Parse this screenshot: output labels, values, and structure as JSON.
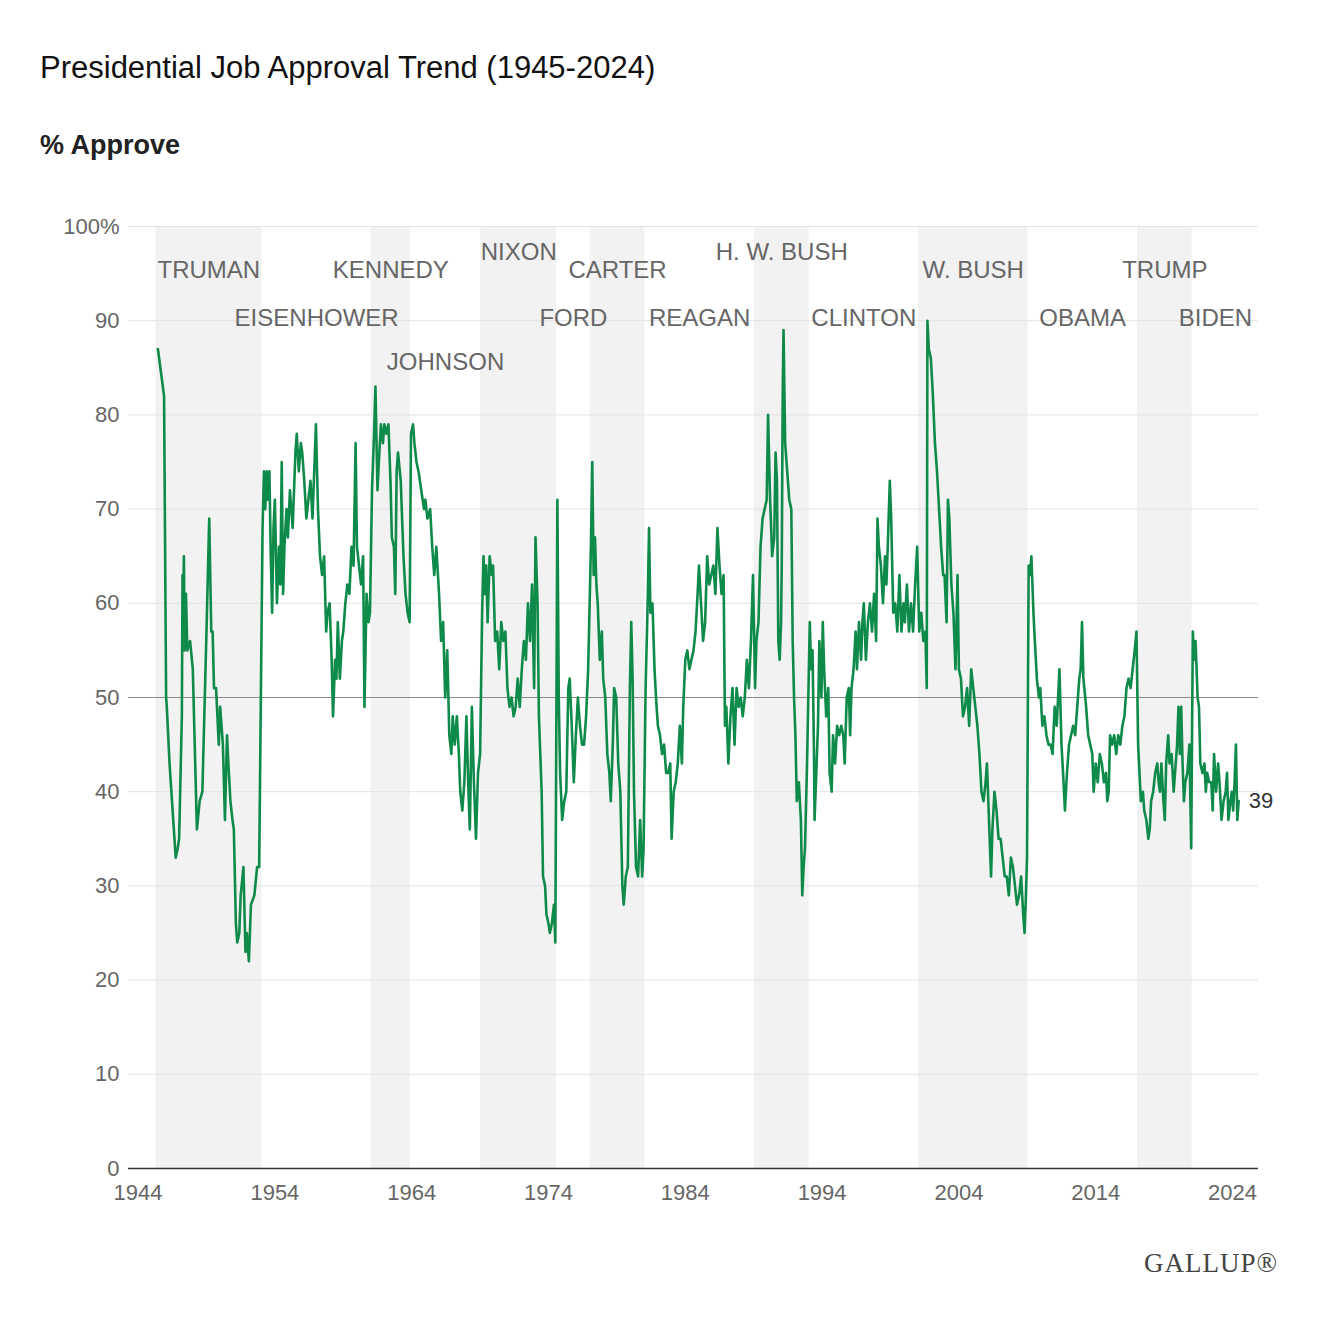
{
  "chart_data": {
    "type": "line",
    "title": "Presidential Job Approval Trend (1945-2024)",
    "subtitle": "% Approve",
    "caption": "GALLUP®",
    "color": "#0e8a4a",
    "grid": true,
    "xlim": [
      1943.3,
      2025.9
    ],
    "xticks": [
      1944,
      1954,
      1964,
      1974,
      1984,
      1994,
      2004,
      2014,
      2024
    ],
    "ylim": [
      0,
      100
    ],
    "yticks": [
      0,
      10,
      20,
      30,
      40,
      50,
      60,
      70,
      80,
      90,
      {
        "value": 100,
        "label": "100%"
      }
    ],
    "reference_line": 50,
    "presidents": [
      {
        "name": "TRUMAN",
        "start": 1945.3,
        "end": 1953.05
      },
      {
        "name": "EISENHOWER",
        "start": 1953.05,
        "end": 1961.05
      },
      {
        "name": "KENNEDY",
        "start": 1961.05,
        "end": 1963.9
      },
      {
        "name": "JOHNSON",
        "start": 1963.9,
        "end": 1969.05
      },
      {
        "name": "NIXON",
        "start": 1969.05,
        "end": 1974.6
      },
      {
        "name": "FORD",
        "start": 1974.6,
        "end": 1977.05
      },
      {
        "name": "CARTER",
        "start": 1977.05,
        "end": 1981.05
      },
      {
        "name": "REAGAN",
        "start": 1981.05,
        "end": 1989.05
      },
      {
        "name": "H. W. BUSH",
        "start": 1989.05,
        "end": 1993.05
      },
      {
        "name": "CLINTON",
        "start": 1993.05,
        "end": 2001.05
      },
      {
        "name": "W. BUSH",
        "start": 2001.05,
        "end": 2009.05
      },
      {
        "name": "OBAMA",
        "start": 2009.05,
        "end": 2017.05
      },
      {
        "name": "TRUMP",
        "start": 2017.05,
        "end": 2021.05
      },
      {
        "name": "BIDEN",
        "start": 2021.05,
        "end": 2024.45
      }
    ],
    "x": [
      1945.45,
      1945.9,
      1946.05,
      1946.1,
      1946.3,
      1946.75,
      1946.9,
      1947.0,
      1947.2,
      1947.25,
      1947.3,
      1947.35,
      1947.4,
      1947.5,
      1947.6,
      1947.8,
      1948.0,
      1948.3,
      1948.5,
      1948.7,
      1949.0,
      1949.2,
      1949.35,
      1949.45,
      1949.55,
      1949.7,
      1949.9,
      1950.0,
      1950.2,
      1950.35,
      1950.5,
      1950.6,
      1950.75,
      1950.9,
      1951.0,
      1951.15,
      1951.25,
      1951.4,
      1951.5,
      1951.7,
      1951.85,
      1951.95,
      1952.1,
      1952.25,
      1952.5,
      1952.7,
      1952.85,
      1953.1,
      1953.2,
      1953.3,
      1953.4,
      1953.5,
      1953.6,
      1953.7,
      1953.8,
      1953.9,
      1954.0,
      1954.15,
      1954.3,
      1954.4,
      1954.5,
      1954.6,
      1954.7,
      1954.85,
      1954.95,
      1955.1,
      1955.3,
      1955.5,
      1955.6,
      1955.75,
      1955.9,
      1956.0,
      1956.15,
      1956.3,
      1956.45,
      1956.6,
      1956.75,
      1956.9,
      1957.0,
      1957.15,
      1957.3,
      1957.45,
      1957.6,
      1957.75,
      1957.85,
      1958.0,
      1958.15,
      1958.25,
      1958.4,
      1958.5,
      1958.6,
      1958.75,
      1958.9,
      1959.0,
      1959.15,
      1959.3,
      1959.45,
      1959.6,
      1959.75,
      1959.9,
      1960.0,
      1960.15,
      1960.3,
      1960.45,
      1960.55,
      1960.7,
      1960.85,
      1960.95,
      1961.1,
      1961.25,
      1961.35,
      1961.5,
      1961.6,
      1961.75,
      1961.9,
      1962.0,
      1962.15,
      1962.3,
      1962.45,
      1962.55,
      1962.7,
      1962.8,
      1962.9,
      1963.0,
      1963.2,
      1963.4,
      1963.55,
      1963.7,
      1963.85,
      1963.95,
      1964.1,
      1964.2,
      1964.35,
      1964.5,
      1964.7,
      1964.9,
      1965.0,
      1965.15,
      1965.35,
      1965.5,
      1965.65,
      1965.8,
      1966.0,
      1966.15,
      1966.3,
      1966.45,
      1966.6,
      1966.75,
      1966.9,
      1967.0,
      1967.15,
      1967.3,
      1967.45,
      1967.55,
      1967.7,
      1967.85,
      1968.0,
      1968.15,
      1968.25,
      1968.4,
      1968.55,
      1968.7,
      1968.85,
      1969.0,
      1969.15,
      1969.25,
      1969.35,
      1969.45,
      1969.55,
      1969.7,
      1969.85,
      1969.95,
      1970.1,
      1970.25,
      1970.4,
      1970.55,
      1970.7,
      1970.85,
      1971.0,
      1971.15,
      1971.3,
      1971.45,
      1971.6,
      1971.75,
      1971.9,
      1972.05,
      1972.2,
      1972.35,
      1972.5,
      1972.65,
      1972.8,
      1972.95,
      1973.05,
      1973.2,
      1973.3,
      1973.4,
      1973.5,
      1973.6,
      1973.75,
      1973.85,
      1974.0,
      1974.1,
      1974.25,
      1974.4,
      1974.5,
      1974.65,
      1974.75,
      1974.85,
      1975.0,
      1975.15,
      1975.3,
      1975.45,
      1975.55,
      1975.7,
      1975.85,
      1976.0,
      1976.15,
      1976.3,
      1976.45,
      1976.6,
      1976.75,
      1976.9,
      1977.1,
      1977.2,
      1977.3,
      1977.4,
      1977.5,
      1977.6,
      1977.75,
      1977.9,
      1978.0,
      1978.15,
      1978.3,
      1978.45,
      1978.55,
      1978.7,
      1978.8,
      1978.95,
      1979.1,
      1979.25,
      1979.4,
      1979.5,
      1979.65,
      1979.8,
      1979.95,
      1980.05,
      1980.15,
      1980.25,
      1980.4,
      1980.55,
      1980.7,
      1980.85,
      1980.95,
      1981.1,
      1981.25,
      1981.35,
      1981.45,
      1981.6,
      1981.75,
      1981.9,
      1982.0,
      1982.15,
      1982.3,
      1982.45,
      1982.6,
      1982.75,
      1982.9,
      1983.0,
      1983.15,
      1983.3,
      1983.45,
      1983.6,
      1983.75,
      1983.85,
      1984.0,
      1984.15,
      1984.3,
      1984.45,
      1984.6,
      1984.75,
      1984.9,
      1985.0,
      1985.15,
      1985.3,
      1985.45,
      1985.6,
      1985.75,
      1985.9,
      1986.05,
      1986.2,
      1986.35,
      1986.5,
      1986.65,
      1986.8,
      1986.9,
      1987.0,
      1987.15,
      1987.3,
      1987.45,
      1987.6,
      1987.75,
      1987.9,
      1988.05,
      1988.2,
      1988.35,
      1988.5,
      1988.65,
      1988.8,
      1988.95,
      1989.1,
      1989.2,
      1989.35,
      1989.5,
      1989.65,
      1989.8,
      1989.95,
      1990.05,
      1990.2,
      1990.35,
      1990.5,
      1990.6,
      1990.7,
      1990.8,
      1990.9,
      1991.0,
      1991.05,
      1991.12,
      1991.18,
      1991.3,
      1991.45,
      1991.6,
      1991.75,
      1991.85,
      1991.95,
      1992.05,
      1992.15,
      1992.3,
      1992.45,
      1992.55,
      1992.65,
      1992.75,
      1992.9,
      1993.1,
      1993.2,
      1993.3,
      1993.4,
      1993.45,
      1993.55,
      1993.7,
      1993.8,
      1993.95,
      1994.05,
      1994.15,
      1994.3,
      1994.45,
      1994.55,
      1994.7,
      1994.8,
      1994.95,
      1995.1,
      1995.25,
      1995.4,
      1995.55,
      1995.65,
      1995.8,
      1995.95,
      1996.05,
      1996.15,
      1996.3,
      1996.45,
      1996.55,
      1996.7,
      1996.85,
      1996.95,
      1997.05,
      1997.2,
      1997.35,
      1997.5,
      1997.65,
      1997.8,
      1997.95,
      1998.05,
      1998.15,
      1998.3,
      1998.45,
      1998.6,
      1998.7,
      1998.8,
      1998.95,
      1999.05,
      1999.2,
      1999.35,
      1999.5,
      1999.65,
      1999.8,
      1999.95,
      2000.05,
      2000.2,
      2000.35,
      2000.5,
      2000.65,
      2000.8,
      2000.95,
      2001.1,
      2001.25,
      2001.4,
      2001.55,
      2001.65,
      2001.7,
      2001.8,
      2001.95,
      2002.1,
      2002.25,
      2002.4,
      2002.55,
      2002.7,
      2002.85,
      2002.95,
      2003.1,
      2003.2,
      2003.3,
      2003.45,
      2003.6,
      2003.75,
      2003.9,
      2004.0,
      2004.15,
      2004.3,
      2004.45,
      2004.6,
      2004.75,
      2004.9,
      2005.05,
      2005.2,
      2005.35,
      2005.5,
      2005.65,
      2005.8,
      2005.95,
      2006.05,
      2006.2,
      2006.35,
      2006.45,
      2006.6,
      2006.75,
      2006.9,
      2007.05,
      2007.2,
      2007.35,
      2007.5,
      2007.65,
      2007.8,
      2007.95,
      2008.1,
      2008.25,
      2008.4,
      2008.55,
      2008.7,
      2008.8,
      2008.9,
      2008.98,
      2009.1,
      2009.2,
      2009.3,
      2009.45,
      2009.55,
      2009.7,
      2009.85,
      2009.95,
      2010.1,
      2010.25,
      2010.4,
      2010.55,
      2010.7,
      2010.85,
      2011.0,
      2011.15,
      2011.35,
      2011.5,
      2011.65,
      2011.75,
      2011.9,
      2012.05,
      2012.2,
      2012.35,
      2012.5,
      2012.65,
      2012.8,
      2012.9,
      2013.0,
      2013.1,
      2013.3,
      2013.45,
      2013.6,
      2013.75,
      2013.85,
      2014.0,
      2014.15,
      2014.3,
      2014.45,
      2014.6,
      2014.75,
      2014.85,
      2014.95,
      2015.05,
      2015.2,
      2015.35,
      2015.5,
      2015.65,
      2015.8,
      2015.95,
      2016.1,
      2016.25,
      2016.4,
      2016.55,
      2016.7,
      2016.85,
      2016.98,
      2017.1,
      2017.2,
      2017.3,
      2017.45,
      2017.55,
      2017.7,
      2017.85,
      2017.95,
      2018.05,
      2018.2,
      2018.35,
      2018.5,
      2018.6,
      2018.7,
      2018.8,
      2018.95,
      2019.05,
      2019.15,
      2019.3,
      2019.4,
      2019.55,
      2019.7,
      2019.85,
      2019.95,
      2020.05,
      2020.15,
      2020.25,
      2020.35,
      2020.45,
      2020.55,
      2020.7,
      2020.85,
      2020.98,
      2021.1,
      2021.2,
      2021.3,
      2021.45,
      2021.55,
      2021.65,
      2021.8,
      2021.95,
      2022.05,
      2022.15,
      2022.3,
      2022.45,
      2022.55,
      2022.65,
      2022.8,
      2022.95,
      2023.05,
      2023.2,
      2023.35,
      2023.5,
      2023.6,
      2023.7,
      2023.85,
      2023.95,
      2024.05,
      2024.15,
      2024.25,
      2024.35,
      2024.45
    ],
    "values": [
      87,
      82,
      50,
      49,
      43,
      33,
      34,
      35,
      48,
      63,
      60,
      65,
      55,
      61,
      55,
      56,
      53,
      36,
      39,
      40,
      57,
      69,
      57,
      57,
      51,
      51,
      45,
      49,
      45,
      37,
      46,
      43,
      39,
      37,
      36,
      26,
      24,
      25,
      29,
      32,
      23,
      25,
      22,
      28,
      29,
      32,
      32,
      68,
      74,
      70,
      74,
      71,
      74,
      65,
      59,
      68,
      71,
      60,
      66,
      62,
      75,
      61,
      66,
      70,
      67,
      72,
      68,
      76,
      78,
      74,
      77,
      76,
      73,
      69,
      71,
      73,
      69,
      75,
      79,
      70,
      65,
      63,
      65,
      57,
      59,
      60,
      54,
      48,
      54,
      52,
      58,
      52,
      56,
      57,
      60,
      62,
      61,
      66,
      64,
      77,
      66,
      64,
      62,
      65,
      49,
      61,
      58,
      59,
      72,
      78,
      83,
      72,
      75,
      79,
      77,
      79,
      78,
      79,
      73,
      67,
      66,
      61,
      74,
      76,
      73,
      65,
      61,
      59,
      58,
      78,
      79,
      77,
      75,
      74,
      72,
      70,
      71,
      69,
      70,
      66,
      63,
      66,
      61,
      56,
      58,
      50,
      55,
      46,
      44,
      48,
      45,
      48,
      44,
      40,
      38,
      41,
      48,
      40,
      36,
      49,
      41,
      35,
      42,
      44,
      59,
      65,
      61,
      64,
      58,
      65,
      63,
      64,
      56,
      57,
      53,
      58,
      56,
      57,
      51,
      49,
      50,
      48,
      49,
      52,
      49,
      53,
      56,
      54,
      60,
      56,
      62,
      51,
      67,
      60,
      48,
      44,
      40,
      31,
      30,
      27,
      26,
      25,
      26,
      28,
      24,
      71,
      50,
      42,
      37,
      39,
      40,
      51,
      52,
      47,
      41,
      46,
      50,
      47,
      45,
      45,
      48,
      53,
      66,
      75,
      63,
      67,
      62,
      60,
      54,
      57,
      52,
      50,
      44,
      42,
      39,
      45,
      51,
      50,
      43,
      40,
      30,
      28,
      31,
      32,
      51,
      58,
      52,
      40,
      32,
      31,
      37,
      31,
      34,
      51,
      60,
      68,
      59,
      60,
      53,
      49,
      47,
      46,
      44,
      45,
      42,
      42,
      43,
      35,
      40,
      41,
      43,
      47,
      43,
      49,
      54,
      55,
      53,
      54,
      55,
      57,
      61,
      64,
      60,
      56,
      58,
      65,
      62,
      63,
      64,
      61,
      68,
      64,
      61,
      63,
      47,
      49,
      43,
      48,
      51,
      45,
      51,
      49,
      50,
      48,
      50,
      54,
      51,
      56,
      63,
      51,
      56,
      58,
      66,
      69,
      70,
      71,
      80,
      71,
      65,
      67,
      76,
      73,
      56,
      54,
      58,
      64,
      82,
      89,
      77,
      74,
      71,
      70,
      56,
      50,
      46,
      39,
      41,
      37,
      29,
      32,
      34,
      43,
      58,
      53,
      55,
      45,
      37,
      41,
      47,
      56,
      50,
      58,
      53,
      48,
      51,
      42,
      40,
      46,
      43,
      47,
      46,
      47,
      46,
      43,
      50,
      51,
      46,
      51,
      53,
      57,
      53,
      58,
      54,
      58,
      60,
      54,
      58,
      60,
      57,
      61,
      56,
      69,
      66,
      64,
      60,
      65,
      62,
      66,
      73,
      69,
      59,
      60,
      57,
      63,
      57,
      60,
      58,
      62,
      57,
      60,
      57,
      62,
      66,
      57,
      59,
      56,
      57,
      51,
      90,
      87,
      86,
      82,
      77,
      74,
      70,
      66,
      63,
      63,
      58,
      71,
      69,
      62,
      59,
      53,
      63,
      53,
      52,
      48,
      49,
      51,
      47,
      53,
      51,
      49,
      47,
      44,
      40,
      39,
      41,
      43,
      37,
      31,
      36,
      40,
      38,
      35,
      35,
      33,
      31,
      31,
      29,
      33,
      32,
      30,
      28,
      29,
      31,
      27,
      25,
      29,
      33,
      64,
      63,
      65,
      59,
      56,
      52,
      50,
      51,
      47,
      48,
      46,
      45,
      45,
      44,
      49,
      47,
      53,
      45,
      41,
      38,
      42,
      45,
      46,
      47,
      46,
      49,
      52,
      53,
      58,
      52,
      49,
      46,
      45,
      44,
      40,
      43,
      41,
      44,
      43,
      41,
      42,
      39,
      40,
      46,
      45,
      46,
      44,
      46,
      45,
      47,
      48,
      51,
      52,
      51,
      53,
      55,
      57,
      45,
      42,
      39,
      40,
      38,
      37,
      35,
      36,
      39,
      40,
      42,
      43,
      41,
      40,
      43,
      39,
      37,
      43,
      46,
      43,
      44,
      40,
      43,
      45,
      49,
      44,
      49,
      43,
      39,
      41,
      42,
      45,
      34,
      57,
      54,
      56,
      50,
      49,
      43,
      42,
      43,
      40,
      42,
      41,
      41,
      38,
      44,
      40,
      43,
      41,
      37,
      39,
      40,
      42,
      37,
      39,
      40,
      38,
      41,
      45,
      37,
      39
    ]
  }
}
